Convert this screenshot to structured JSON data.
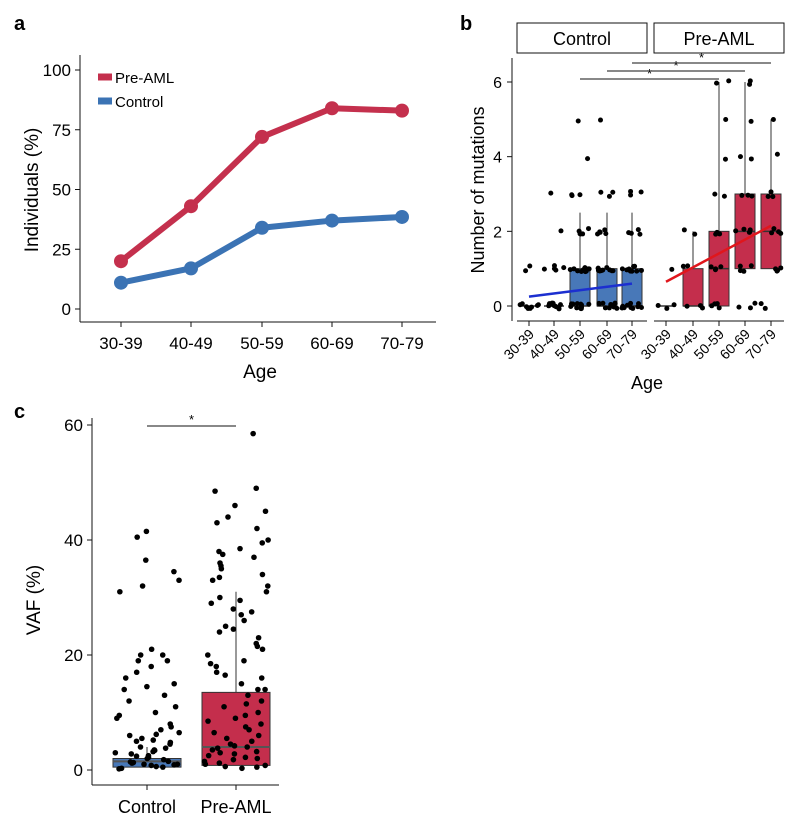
{
  "panel_letters": {
    "a": "a",
    "b": "b",
    "c": "c"
  },
  "colors": {
    "pre_aml": "#c4304d",
    "control": "#3b73b4",
    "pre_aml_box": "#c42e4c",
    "control_box": "#4878b8",
    "fit_control": "#1c2fd0",
    "fit_pre_aml": "#e0161c"
  },
  "chart_data": [
    {
      "id": "a",
      "type": "line",
      "title": "",
      "xlabel": "Age",
      "ylabel": "Individuals (%)",
      "categories": [
        "30-39",
        "40-49",
        "50-59",
        "60-69",
        "70-79"
      ],
      "ylim": [
        0,
        100
      ],
      "yticks": [
        0,
        25,
        50,
        75,
        100
      ],
      "legend": [
        "Pre-AML",
        "Control"
      ],
      "legend_position": "top-left",
      "series": [
        {
          "name": "Pre-AML",
          "values": [
            20,
            43,
            72,
            84,
            83
          ]
        },
        {
          "name": "Control",
          "values": [
            11,
            17,
            34,
            37,
            38.5
          ]
        }
      ]
    },
    {
      "id": "b",
      "type": "box",
      "xlabel": "Age",
      "ylabel": "Number of mutations",
      "ylim": [
        0,
        6
      ],
      "yticks": [
        0,
        2,
        4,
        6
      ],
      "facets": [
        "Control",
        "Pre-AML"
      ],
      "categories": [
        "30-39",
        "40-49",
        "50-59",
        "60-69",
        "70-79"
      ],
      "boxes": {
        "Control": [
          {
            "q1": 0,
            "median": 0,
            "q3": 0,
            "lo": 0,
            "hi": 0
          },
          {
            "q1": 0,
            "median": 0,
            "q3": 0,
            "lo": 0,
            "hi": 0
          },
          {
            "q1": 0,
            "median": 0,
            "q3": 1,
            "lo": 0,
            "hi": 2.5
          },
          {
            "q1": 0,
            "median": 0,
            "q3": 1,
            "lo": 0,
            "hi": 2.5
          },
          {
            "q1": 0,
            "median": 0,
            "q3": 1,
            "lo": 0,
            "hi": 2.5
          }
        ],
        "Pre-AML": [
          {
            "q1": 0,
            "median": 0,
            "q3": 0,
            "lo": 0,
            "hi": 0
          },
          {
            "q1": 0,
            "median": 0,
            "q3": 1,
            "lo": 0,
            "hi": 2
          },
          {
            "q1": 0,
            "median": 1,
            "q3": 2,
            "lo": 0,
            "hi": 6
          },
          {
            "q1": 1,
            "median": 2,
            "q3": 3,
            "lo": 0,
            "hi": 6
          },
          {
            "q1": 1,
            "median": 2,
            "q3": 3,
            "lo": 0,
            "hi": 5
          }
        ]
      },
      "points": {
        "Control": [
          [
            0,
            0,
            0,
            0,
            0,
            0,
            0,
            1,
            1,
            0
          ],
          [
            0,
            0,
            0,
            0,
            0,
            0,
            0,
            1,
            1,
            1,
            1,
            0,
            0,
            2,
            3,
            0,
            0,
            1
          ],
          [
            0,
            0,
            0,
            0,
            0,
            0,
            0,
            0,
            1,
            1,
            1,
            1,
            1,
            1,
            1,
            1,
            2,
            2,
            2,
            2,
            3,
            3,
            3,
            5,
            4,
            0,
            0,
            0,
            1,
            1,
            2,
            0
          ],
          [
            0,
            0,
            0,
            0,
            0,
            0,
            0,
            0,
            1,
            1,
            1,
            1,
            1,
            1,
            1,
            1,
            2,
            2,
            2,
            2,
            3,
            3,
            3,
            5,
            0,
            0,
            1,
            1,
            2,
            0
          ],
          [
            0,
            0,
            0,
            0,
            0,
            0,
            0,
            0,
            1,
            1,
            1,
            1,
            1,
            1,
            1,
            1,
            2,
            2,
            2,
            2,
            3,
            3,
            3,
            0,
            0,
            1
          ]
        ],
        "Pre-AML": [
          [
            0,
            0,
            0,
            1
          ],
          [
            0,
            0,
            1,
            1,
            2,
            2,
            0
          ],
          [
            0,
            0,
            0,
            1,
            1,
            1,
            2,
            2,
            2,
            3,
            3,
            4,
            5,
            6,
            6,
            1,
            0
          ],
          [
            0,
            0,
            1,
            1,
            1,
            2,
            2,
            2,
            2,
            3,
            3,
            3,
            4,
            4,
            5,
            6,
            6,
            0,
            1,
            2
          ],
          [
            0,
            0,
            1,
            1,
            1,
            2,
            2,
            2,
            3,
            3,
            3,
            4,
            5,
            1,
            2
          ]
        ]
      },
      "trend": {
        "Control": [
          0.25,
          0.6
        ],
        "Pre-AML": [
          0.65,
          2.15
        ]
      },
      "significance": [
        {
          "from": "Control 50-59",
          "to": "Pre-AML 50-59",
          "label": "*"
        },
        {
          "from": "Control 60-69",
          "to": "Pre-AML 60-69",
          "label": "*"
        },
        {
          "from": "Control 70-79",
          "to": "Pre-AML 70-79",
          "label": "*"
        }
      ]
    },
    {
      "id": "c",
      "type": "box",
      "xlabel": "",
      "ylabel": "VAF (%)",
      "ylim": [
        0,
        60
      ],
      "yticks": [
        0,
        20,
        40,
        60
      ],
      "categories": [
        "Control",
        "Pre-AML"
      ],
      "boxes": [
        {
          "q1": 0.5,
          "median": 1.5,
          "q3": 2,
          "lo": 0,
          "hi": 4
        },
        {
          "q1": 0.8,
          "median": 4,
          "q3": 13.5,
          "lo": 0,
          "hi": 31
        }
      ],
      "points": [
        [
          0.5,
          0.8,
          1,
          1.2,
          1.5,
          1.8,
          2,
          2.2,
          2.5,
          3,
          3.2,
          3.5,
          4,
          4.5,
          5,
          5.5,
          6,
          6.5,
          7,
          7.5,
          8,
          9,
          10,
          11,
          12,
          13,
          14,
          15,
          16,
          17,
          18,
          19,
          20,
          21,
          0.3,
          0.6,
          1,
          1.4,
          2.8,
          3.8,
          4.8,
          6.2,
          9.5,
          14.5,
          19,
          20,
          31,
          32,
          33,
          34.5,
          36.5,
          40.5,
          41.5,
          0.2,
          0.9,
          1.3,
          2.4,
          3.4,
          5.2
        ],
        [
          0.5,
          1,
          1.5,
          2,
          2.5,
          3,
          3.5,
          4,
          4.5,
          5,
          6,
          7,
          8,
          9,
          10,
          11,
          12,
          13,
          14,
          15,
          16,
          17,
          18,
          19,
          20,
          21,
          22,
          23,
          24,
          25,
          26,
          27,
          28,
          29,
          30,
          31,
          32,
          33,
          34,
          35,
          36,
          37,
          38,
          40,
          42,
          43,
          44,
          45,
          46,
          48.5,
          49,
          58.5,
          0.3,
          0.8,
          1.8,
          2.8,
          3.8,
          5.5,
          7.5,
          9.5,
          11.5,
          14,
          16.5,
          18.5,
          21.5,
          24.5,
          27.5,
          29.5,
          33.5,
          35.5,
          37.5,
          38.5,
          39.5,
          0.6,
          1.2,
          2.2,
          3.2,
          4.2,
          6.5,
          8.5
        ]
      ],
      "significance": [
        {
          "from": "Control",
          "to": "Pre-AML",
          "label": "*"
        }
      ]
    }
  ]
}
